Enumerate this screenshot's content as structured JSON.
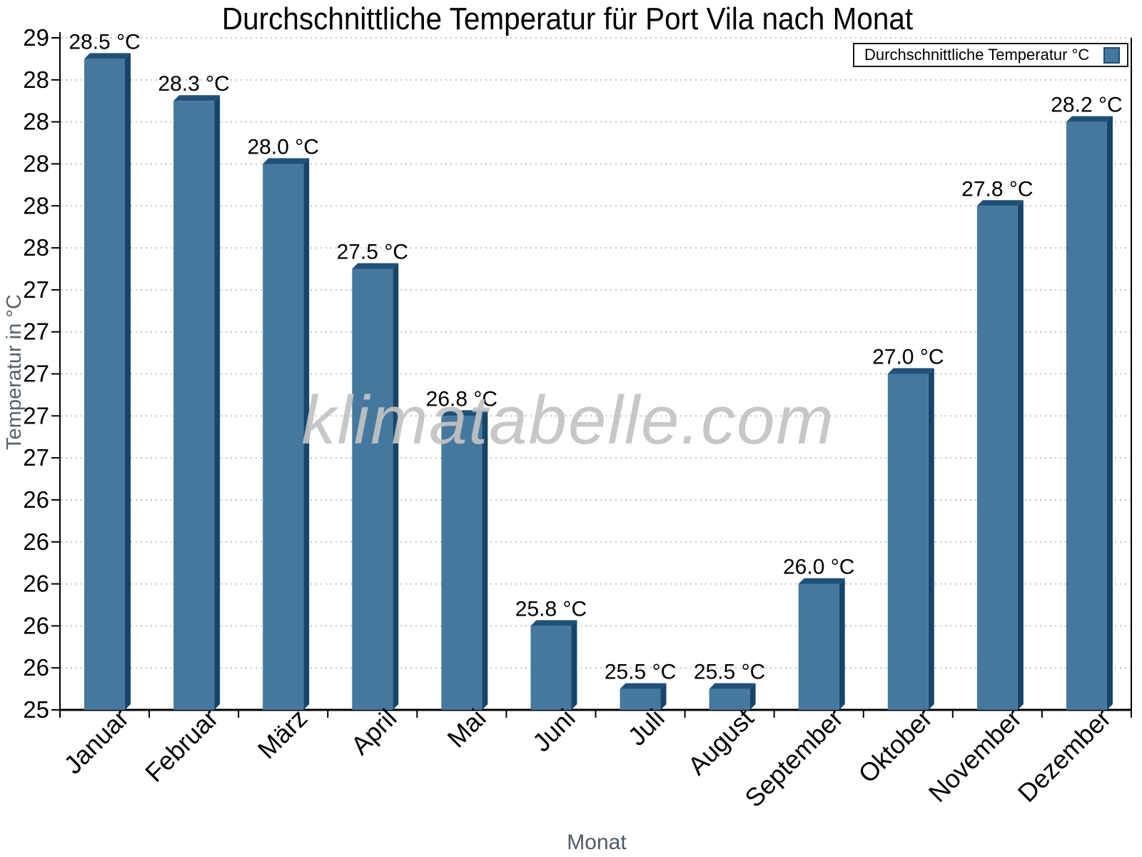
{
  "title": "Durchschnittliche Temperatur für Port Vila nach Monat",
  "watermark": "klimatabelle.com",
  "legend": {
    "label": "Durchschnittliche Temperatur °C"
  },
  "chart_data": {
    "type": "bar",
    "title": "Durchschnittliche Temperatur für Port Vila nach Monat",
    "xlabel": "Monat",
    "ylabel": "Temperatur in °C",
    "categories": [
      "Januar",
      "Februar",
      "März",
      "April",
      "Mai",
      "Juni",
      "Juli",
      "August",
      "September",
      "Oktober",
      "November",
      "Dezember"
    ],
    "values": [
      28.5,
      28.3,
      28.0,
      27.5,
      26.8,
      25.8,
      25.5,
      25.5,
      26.0,
      27.0,
      27.8,
      28.2
    ],
    "value_labels": [
      "28.5 °C",
      "28.3 °C",
      "28.0 °C",
      "27.5 °C",
      "26.8 °C",
      "25.8 °C",
      "25.5 °C",
      "25.5 °C",
      "26.0 °C",
      "27.0 °C",
      "27.8 °C",
      "28.2 °C"
    ],
    "unit": "°C",
    "series_name": "Durchschnittliche Temperatur °C",
    "y_axis": {
      "min": 25.4,
      "max": 28.6,
      "tick_interval": 0.2,
      "tick_labels": [
        "29",
        "28",
        "28",
        "28",
        "28",
        "28",
        "27",
        "27",
        "27",
        "27",
        "27",
        "26",
        "26",
        "26",
        "26",
        "26",
        "25"
      ]
    },
    "legend_position": "top-right",
    "grid": "horizontal-dotted",
    "colors": {
      "bar_face": "#45789E",
      "bar_side": "#174569",
      "bar_top": "#205077",
      "grid": "#c2c2c2",
      "axis": "#000000",
      "label": "#000000"
    }
  }
}
